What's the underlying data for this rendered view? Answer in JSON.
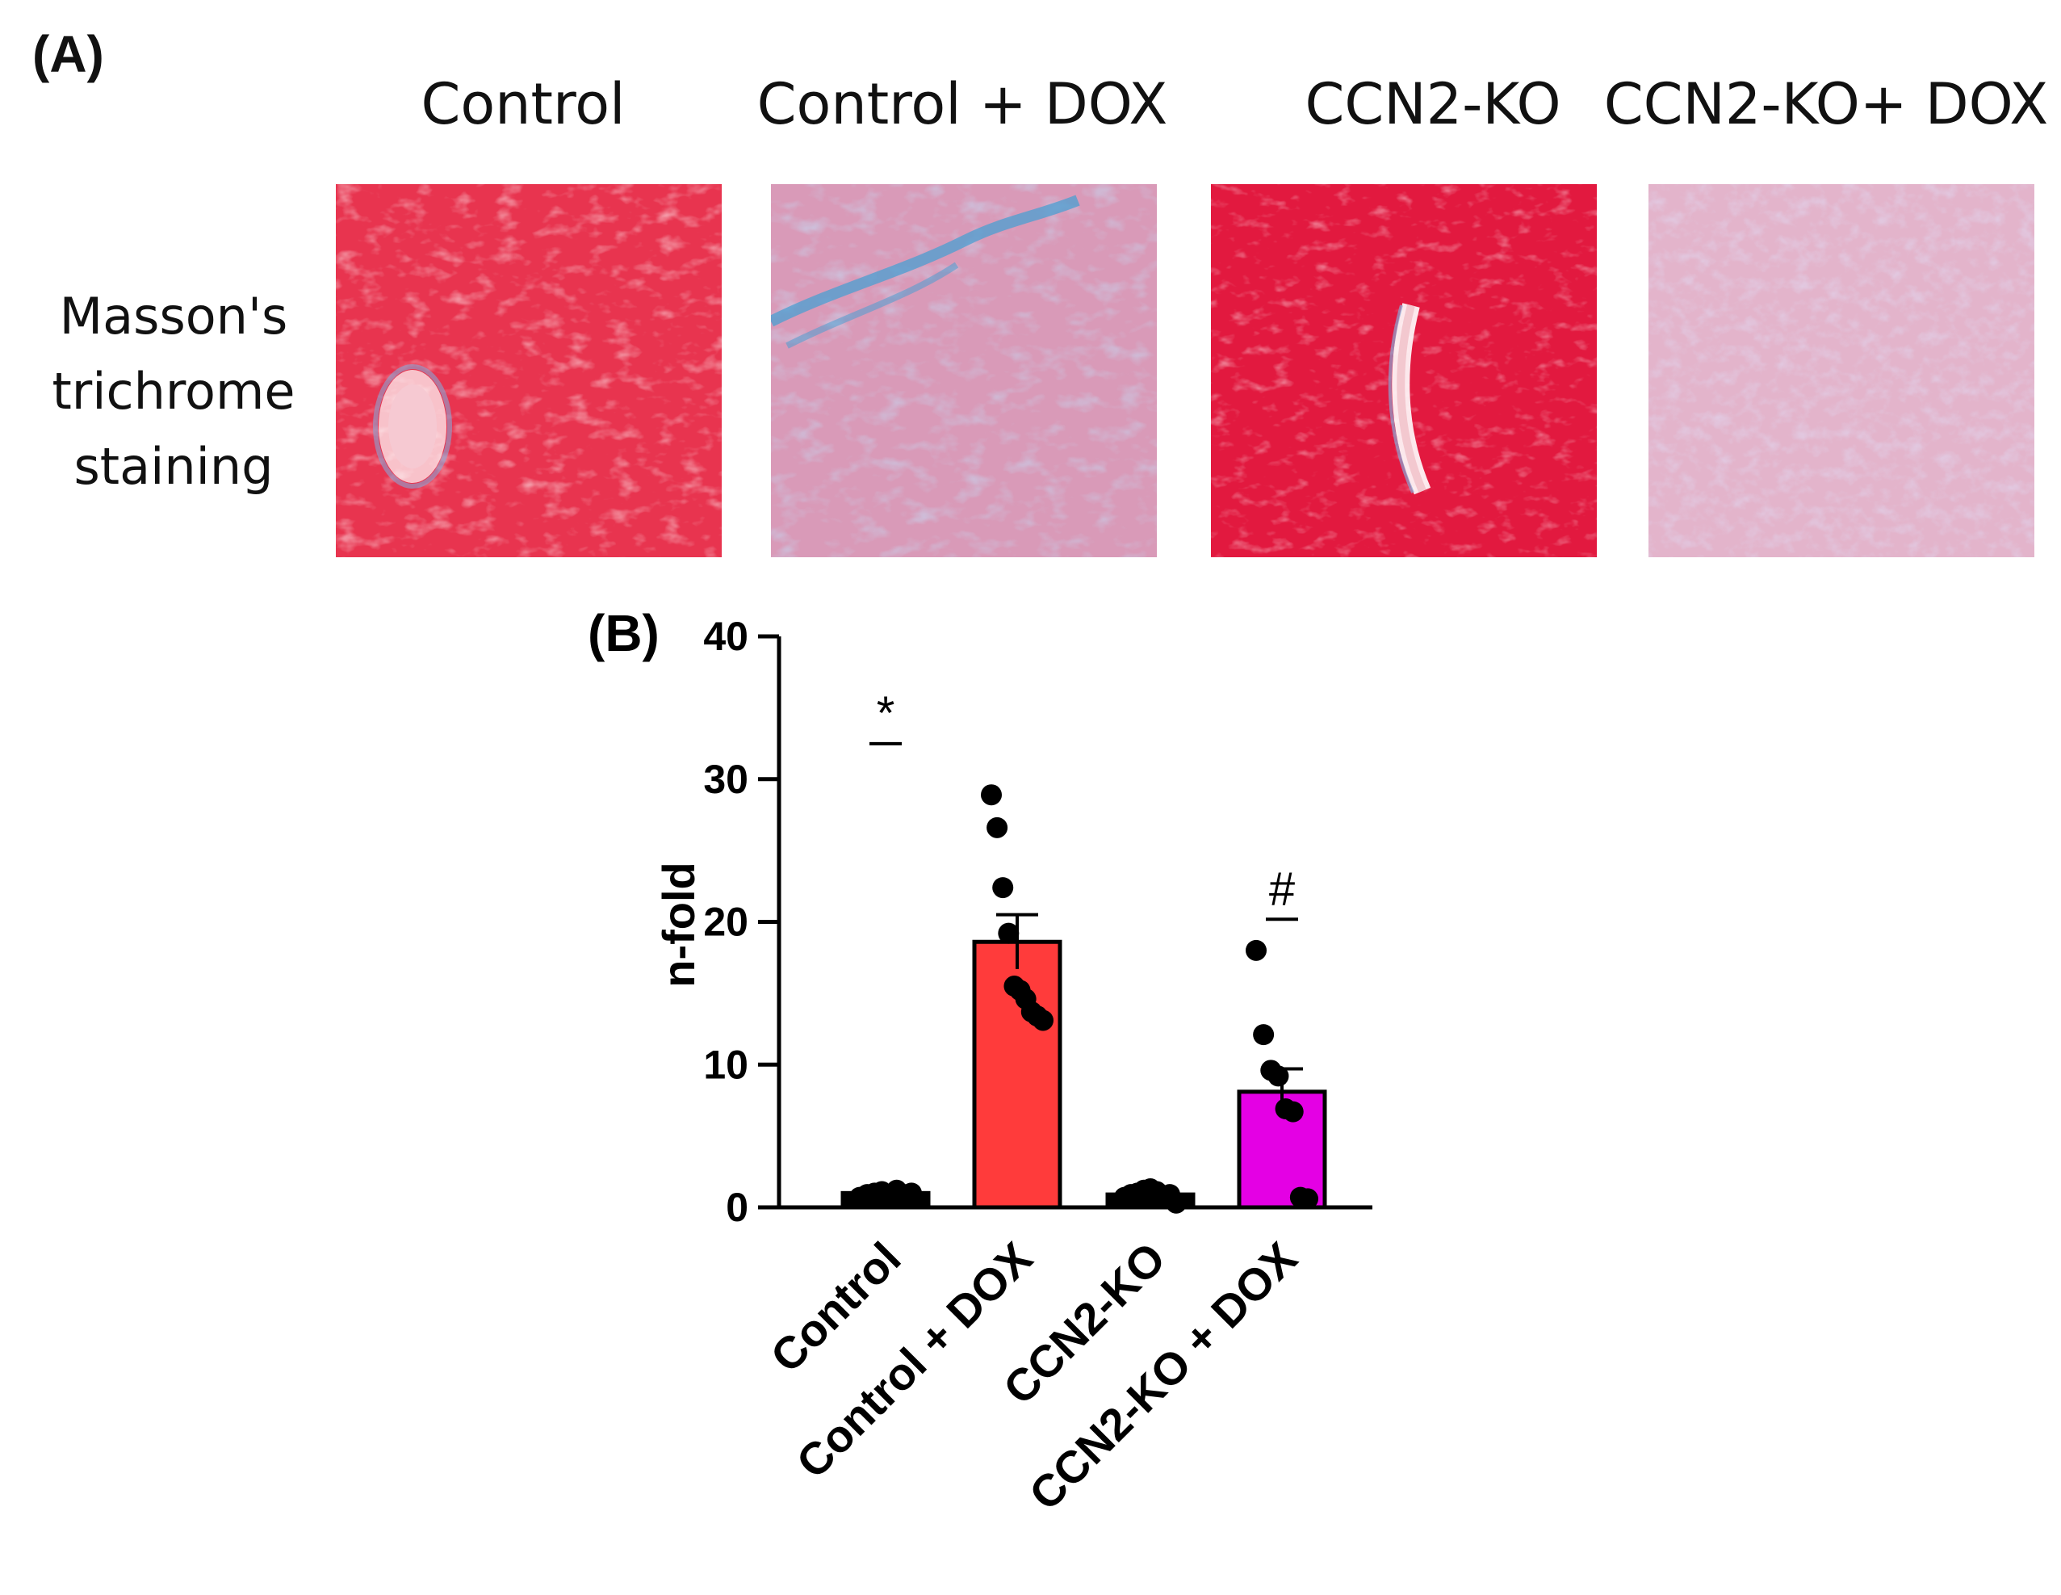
{
  "panel_a": {
    "label": "(A)",
    "columns": [
      "Control",
      "Control + DOX",
      "CCN2-KO",
      "CCN2-KO+ DOX"
    ],
    "row_label": [
      "Masson's",
      "trichrome",
      "staining"
    ],
    "images": [
      {
        "name": "control",
        "base": "#e8344f",
        "fiber": "#ffffff",
        "blue": "#8aa7d6"
      },
      {
        "name": "control-dox",
        "base": "#d99ab8",
        "fiber": "#f3d7e4",
        "blue": "#4a9fd1"
      },
      {
        "name": "ccn2-ko",
        "base": "#e2193f",
        "fiber": "#ffffff",
        "blue": "#8aa7d6"
      },
      {
        "name": "ccn2-ko-dox",
        "base": "#e3b4cb",
        "fiber": "#f4e1ea",
        "blue": "#b7bde3"
      }
    ]
  },
  "chart_data": {
    "type": "bar",
    "panel_label": "(B)",
    "categories": [
      "Control",
      "Control + DOX",
      "CCN2-KO",
      "CCN2-KO + DOX"
    ],
    "values": [
      1.0,
      18.6,
      0.9,
      8.1
    ],
    "errors": [
      0.1,
      1.9,
      0.1,
      1.6
    ],
    "colors": [
      "#000000",
      "#ff3b3b",
      "#000000",
      "#e400e4"
    ],
    "points": [
      [
        0.7,
        0.9,
        1.0,
        1.1,
        0.8,
        1.2,
        0.9,
        1.0
      ],
      [
        28.9,
        26.6,
        22.4,
        19.2,
        15.5,
        15.2,
        14.6,
        13.7,
        13.4,
        13.1
      ],
      [
        0.7,
        0.9,
        1.0,
        1.2,
        1.3,
        1.1,
        0.8,
        0.9,
        0.3
      ],
      [
        18.0,
        12.1,
        9.6,
        9.2,
        6.9,
        6.7,
        0.7,
        0.6
      ]
    ],
    "annotations": [
      "*",
      "",
      "",
      "#"
    ],
    "ylabel": "n-fold",
    "xlabel": "",
    "ylim": [
      0,
      40
    ],
    "yticks": [
      0,
      10,
      20,
      30,
      40
    ]
  }
}
